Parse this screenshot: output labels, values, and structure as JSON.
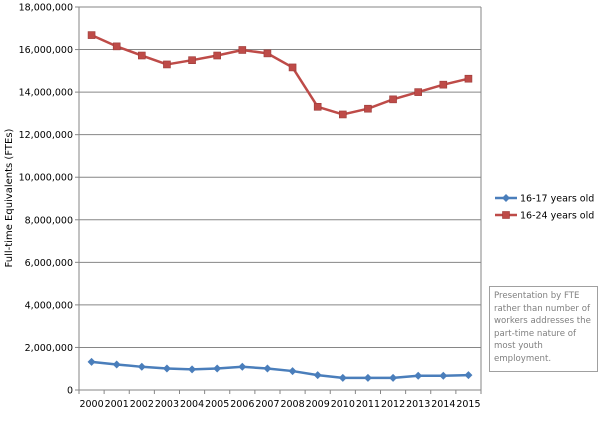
{
  "chart_data": {
    "type": "line",
    "title": "",
    "xlabel": "",
    "ylabel": "Full-time Equivalents (FTEs)",
    "ylim": [
      0,
      18000000
    ],
    "ytick_step": 2000000,
    "ytick_labels": [
      "0",
      "2,000,000",
      "4,000,000",
      "6,000,000",
      "8,000,000",
      "10,000,000",
      "12,000,000",
      "14,000,000",
      "16,000,000",
      "18,000,000"
    ],
    "categories": [
      "2000",
      "2001",
      "2002",
      "2003",
      "2004",
      "2005",
      "2006",
      "2007",
      "2008",
      "2009",
      "2010",
      "2011",
      "2012",
      "2013",
      "2014",
      "2015"
    ],
    "grid": "horizontal",
    "legend_position": "right",
    "series": [
      {
        "name": "16-17 years old",
        "color": "#4a7ebb",
        "marker": "diamond",
        "values": [
          1320000,
          1200000,
          1090000,
          1010000,
          970000,
          1010000,
          1090000,
          1010000,
          890000,
          700000,
          570000,
          570000,
          570000,
          670000,
          670000,
          700000
        ]
      },
      {
        "name": "16-24 years old",
        "color": "#be4b48",
        "marker": "square",
        "values": [
          16680000,
          16150000,
          15720000,
          15300000,
          15500000,
          15720000,
          15980000,
          15820000,
          15160000,
          13310000,
          12950000,
          13220000,
          13660000,
          14000000,
          14350000,
          14630000
        ]
      }
    ],
    "annotation": "Presentation by FTE rather than number of workers addresses the part-time nature of most youth employment."
  }
}
